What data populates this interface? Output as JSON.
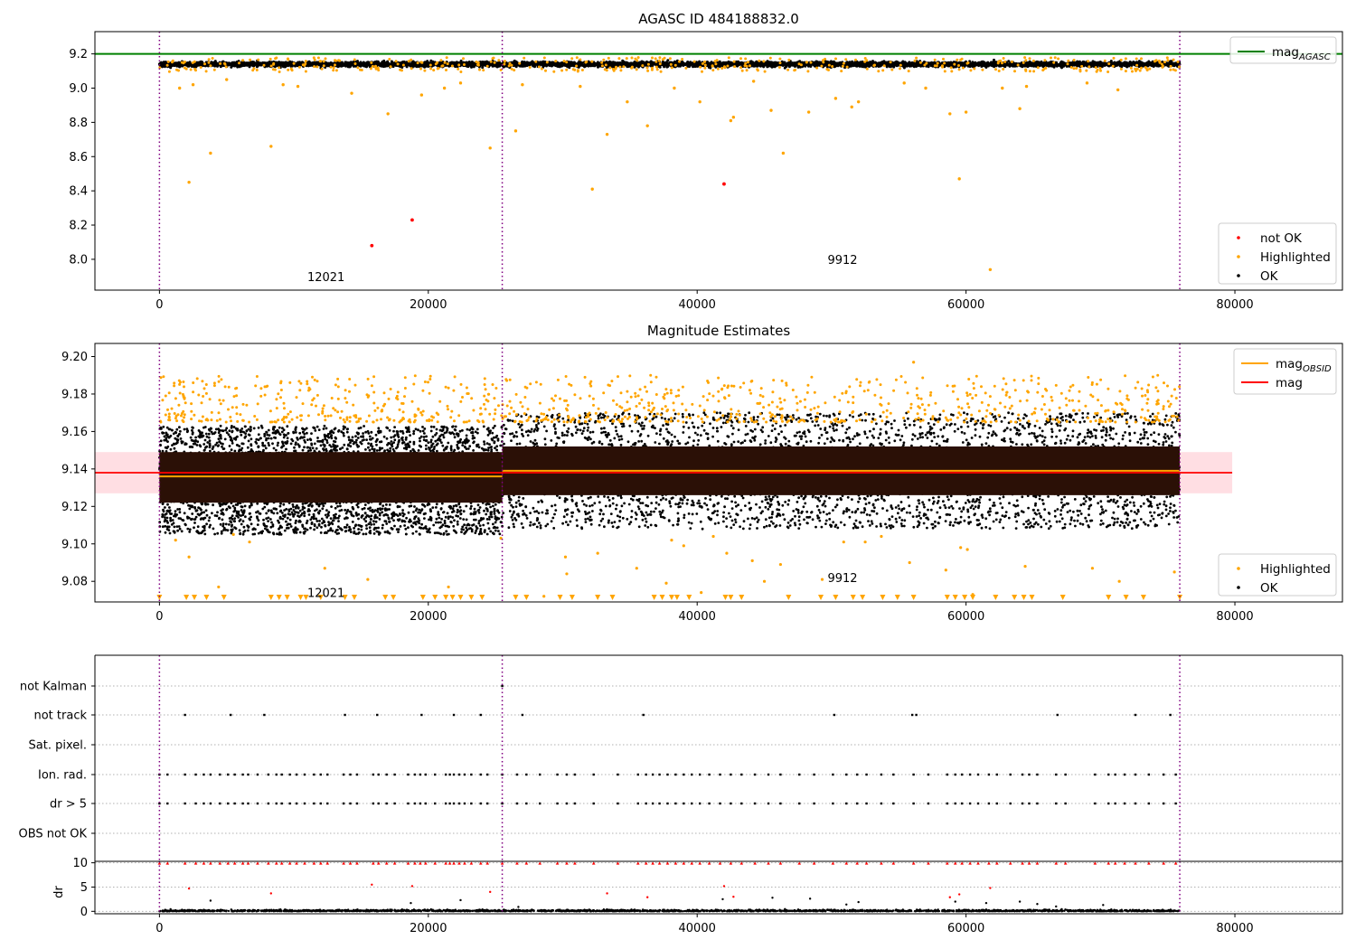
{
  "chart_data": [
    {
      "type": "scatter",
      "title": "AGASC ID 484188832.0",
      "xlim": [
        -4800,
        88000
      ],
      "ylim": [
        7.82,
        9.33
      ],
      "xticks": [
        0,
        20000,
        40000,
        60000,
        80000
      ],
      "yticks": [
        8.0,
        8.2,
        8.4,
        8.6,
        8.8,
        9.0,
        9.2
      ],
      "reference_line": {
        "name": "mag_AGASC",
        "value": 9.2,
        "color": "#008000"
      },
      "obsid_boundaries": [
        0,
        25500,
        75900
      ],
      "obsid_labels": [
        {
          "text": "12021",
          "x": 11000,
          "y": 7.9
        },
        {
          "text": "9912",
          "x": 49700,
          "y": 8.0
        }
      ],
      "legends": [
        {
          "position": "upper-right",
          "entries": [
            {
              "label": "mag",
              "subscript": "AGASC",
              "color": "#008000",
              "kind": "line"
            }
          ]
        },
        {
          "position": "lower-right",
          "entries": [
            {
              "label": "not OK",
              "color": "#ff0000",
              "kind": "marker"
            },
            {
              "label": "Highlighted",
              "color": "#ffa500",
              "kind": "marker"
            },
            {
              "label": "OK",
              "color": "#000000",
              "kind": "marker"
            }
          ]
        }
      ],
      "series": [
        {
          "name": "OK",
          "color": "#000000",
          "y_band": [
            9.115,
            9.165
          ],
          "x_range": [
            0,
            75900
          ],
          "description_density": "dense"
        },
        {
          "name": "Highlighted",
          "color": "#ffa500",
          "points": [
            [
              2200,
              8.45
            ],
            [
              3800,
              8.62
            ],
            [
              8300,
              8.66
            ],
            [
              17000,
              8.85
            ],
            [
              24600,
              8.65
            ],
            [
              26500,
              8.75
            ],
            [
              32200,
              8.41
            ],
            [
              33300,
              8.73
            ],
            [
              36300,
              8.78
            ],
            [
              42500,
              8.81
            ],
            [
              42700,
              8.83
            ],
            [
              46400,
              8.62
            ],
            [
              48300,
              8.86
            ],
            [
              58800,
              8.85
            ],
            [
              59500,
              8.47
            ],
            [
              61800,
              7.94
            ],
            [
              60000,
              8.86
            ],
            [
              64000,
              8.88
            ],
            [
              1500,
              9.0
            ],
            [
              2500,
              9.02
            ],
            [
              5000,
              9.05
            ],
            [
              9200,
              9.02
            ],
            [
              10300,
              9.01
            ],
            [
              14300,
              8.97
            ],
            [
              19500,
              8.96
            ],
            [
              21200,
              9.0
            ],
            [
              22400,
              9.03
            ],
            [
              27000,
              9.02
            ],
            [
              31300,
              9.01
            ],
            [
              34800,
              8.92
            ],
            [
              38300,
              9.0
            ],
            [
              40200,
              8.92
            ],
            [
              44200,
              9.04
            ],
            [
              45500,
              8.87
            ],
            [
              50300,
              8.94
            ],
            [
              51500,
              8.89
            ],
            [
              52000,
              8.92
            ],
            [
              55400,
              9.03
            ],
            [
              57000,
              9.0
            ],
            [
              62700,
              9.0
            ],
            [
              64500,
              9.01
            ],
            [
              69000,
              9.03
            ],
            [
              71300,
              8.99
            ]
          ]
        },
        {
          "name": "not OK",
          "color": "#ff0000",
          "points": [
            [
              15800,
              8.08
            ],
            [
              18800,
              8.23
            ],
            [
              42000,
              8.44
            ]
          ]
        }
      ]
    },
    {
      "type": "scatter",
      "title": "Magnitude Estimates",
      "xlim": [
        -4800,
        88000
      ],
      "ylim": [
        9.069,
        9.207
      ],
      "xticks": [
        0,
        20000,
        40000,
        60000,
        80000
      ],
      "yticks": [
        9.08,
        9.1,
        9.12,
        9.14,
        9.16,
        9.18,
        9.2
      ],
      "mag": {
        "value": 9.138,
        "band": [
          9.127,
          9.149
        ],
        "x_range": [
          -4800,
          79800
        ],
        "color": "#ff0000"
      },
      "mag_obsid": [
        {
          "obsid": "12021",
          "value": 9.136,
          "x_range": [
            0,
            25500
          ]
        },
        {
          "obsid": "9912",
          "value": 9.139,
          "x_range": [
            25500,
            75900
          ]
        }
      ],
      "obsid_boundaries": [
        0,
        25500,
        75900
      ],
      "obsid_labels": [
        {
          "text": "12021",
          "x": 11000,
          "y": 9.074
        },
        {
          "text": "9912",
          "x": 49700,
          "y": 9.082
        }
      ],
      "legends": [
        {
          "position": "upper-right",
          "entries": [
            {
              "label": "mag",
              "subscript": "OBSID",
              "color": "#ffa500",
              "kind": "line"
            },
            {
              "label": "mag",
              "subscript": "",
              "color": "#ff0000",
              "kind": "line"
            }
          ]
        },
        {
          "position": "lower-right",
          "entries": [
            {
              "label": "Highlighted",
              "color": "#ffa500",
              "kind": "marker"
            },
            {
              "label": "OK",
              "color": "#000000",
              "kind": "marker"
            }
          ]
        }
      ],
      "series": [
        {
          "name": "OK",
          "segments": [
            {
              "x_range": [
                0,
                25500
              ],
              "core": [
                9.122,
                9.149
              ],
              "spread": [
                9.105,
                9.163
              ]
            },
            {
              "x_range": [
                25500,
                75900
              ],
              "core": [
                9.126,
                9.152
              ],
              "spread": [
                9.108,
                9.17
              ]
            }
          ],
          "color": "#000000"
        },
        {
          "name": "Highlighted",
          "color": "#ffa500",
          "y_range_upper": [
            9.165,
            9.19
          ],
          "outliers": [
            [
              56100,
              9.197
            ],
            [
              1200,
              9.102
            ],
            [
              2200,
              9.093
            ],
            [
              4400,
              9.077
            ],
            [
              5500,
              9.105
            ],
            [
              6700,
              9.101
            ],
            [
              12300,
              9.087
            ],
            [
              15500,
              9.081
            ],
            [
              21500,
              9.077
            ],
            [
              25400,
              9.103
            ],
            [
              28600,
              9.072
            ],
            [
              30200,
              9.093
            ],
            [
              30300,
              9.084
            ],
            [
              32600,
              9.095
            ],
            [
              35500,
              9.087
            ],
            [
              37700,
              9.079
            ],
            [
              38100,
              9.102
            ],
            [
              39000,
              9.099
            ],
            [
              40300,
              9.074
            ],
            [
              41200,
              9.104
            ],
            [
              42200,
              9.095
            ],
            [
              44100,
              9.091
            ],
            [
              45000,
              9.08
            ],
            [
              46200,
              9.089
            ],
            [
              49300,
              9.081
            ],
            [
              50900,
              9.101
            ],
            [
              52500,
              9.101
            ],
            [
              53700,
              9.104
            ],
            [
              55800,
              9.09
            ],
            [
              58500,
              9.086
            ],
            [
              59600,
              9.098
            ],
            [
              60100,
              9.097
            ],
            [
              60500,
              9.073
            ],
            [
              64400,
              9.088
            ],
            [
              69400,
              9.087
            ],
            [
              71400,
              9.08
            ],
            [
              75500,
              9.085
            ]
          ],
          "below_axis_markers": [
            0,
            2000,
            2600,
            3500,
            4800,
            8300,
            8900,
            9500,
            10500,
            10900,
            12000,
            13800,
            14500,
            16800,
            17400,
            19600,
            20500,
            21300,
            21800,
            22400,
            23200,
            24000,
            26500,
            27300,
            29800,
            30700,
            32600,
            33700,
            36800,
            37400,
            38100,
            38500,
            39400,
            42100,
            42500,
            43300,
            46800,
            49200,
            50300,
            51600,
            52300,
            53800,
            54900,
            56100,
            58600,
            59200,
            59900,
            60500,
            62200,
            63600,
            64300,
            64900,
            67200,
            70600,
            71900,
            73200,
            75900
          ]
        }
      ]
    },
    {
      "type": "scatter",
      "title": "",
      "xlim": [
        -4800,
        88000
      ],
      "xticks": [
        0,
        20000,
        40000,
        60000,
        80000
      ],
      "flag_categories": [
        "not Kalman",
        "not track",
        "Sat. pixel.",
        "Ion. rad.",
        "dr > 5",
        "OBS not OK"
      ],
      "obsid_boundaries": [
        0,
        25500,
        75900
      ],
      "flags": {
        "not Kalman": [
          25500
        ],
        "not track": [
          1900,
          5300,
          7800,
          13800,
          16200,
          19500,
          21900,
          23900,
          27000,
          36000,
          50200,
          56000,
          56300,
          66800,
          72600,
          75200
        ],
        "Sat. pixel.": [],
        "Ion. rad.": [
          0,
          600,
          1900,
          2700,
          3300,
          3800,
          4500,
          5100,
          5600,
          6200,
          6600,
          7300,
          8100,
          8700,
          9100,
          9700,
          10200,
          10800,
          11500,
          12000,
          12500,
          13700,
          14200,
          14700,
          15900,
          16300,
          16900,
          17500,
          18500,
          19000,
          19400,
          19800,
          20500,
          21300,
          21600,
          21900,
          22300,
          22700,
          23200,
          23900,
          24400,
          25500,
          26600,
          27300,
          28300,
          29600,
          30300,
          30900,
          32300,
          34100,
          35600,
          36200,
          36700,
          37200,
          37800,
          38400,
          39000,
          39600,
          40200,
          40900,
          41700,
          42500,
          43300,
          44300,
          45300,
          46200,
          47600,
          48700,
          50100,
          51100,
          51900,
          52600,
          53700,
          54600,
          56100,
          57200,
          58600,
          59200,
          59700,
          60300,
          60900,
          61700,
          62300,
          63300,
          64200,
          64700,
          65300,
          66700,
          67400,
          69600,
          70600,
          71100,
          71800,
          72600,
          73600,
          74700,
          75600
        ],
        "dr > 5": [
          0,
          600,
          1900,
          2700,
          3300,
          3800,
          4500,
          5100,
          5600,
          6200,
          6600,
          7300,
          8100,
          8700,
          9100,
          9700,
          10200,
          10800,
          11500,
          12000,
          12500,
          13700,
          14200,
          14700,
          15900,
          16300,
          16900,
          17500,
          18500,
          19000,
          19400,
          19800,
          20500,
          21300,
          21600,
          21900,
          22300,
          22700,
          23200,
          23900,
          24400,
          25500,
          26600,
          27300,
          28300,
          29600,
          30300,
          30900,
          32300,
          34100,
          35600,
          36200,
          36700,
          37200,
          37800,
          38400,
          39000,
          39600,
          40200,
          40900,
          41700,
          42500,
          43300,
          44300,
          45300,
          46200,
          47600,
          48700,
          50100,
          51100,
          51900,
          52600,
          53700,
          54600,
          56100,
          57200,
          58600,
          59200,
          59700,
          60300,
          60900,
          61700,
          62300,
          63300,
          64200,
          64700,
          65300,
          66700,
          67400,
          69600,
          70600,
          71100,
          71800,
          72600,
          73600,
          74700,
          75600
        ],
        "OBS not OK": []
      }
    },
    {
      "type": "scatter",
      "title": "",
      "ylabel": "dr",
      "xlim": [
        -4800,
        88000
      ],
      "ylim": [
        -0.5,
        10.3
      ],
      "xticks": [
        0,
        20000,
        40000,
        60000,
        80000
      ],
      "yticks": [
        0,
        5,
        10
      ],
      "series": [
        {
          "name": "OK",
          "color": "#000000",
          "y_range": [
            0,
            0.9
          ],
          "x_range": [
            0,
            75900
          ],
          "extra_points": [
            [
              3800,
              2.2
            ],
            [
              18700,
              1.7
            ],
            [
              22400,
              2.3
            ],
            [
              26700,
              0.9
            ],
            [
              41900,
              2.5
            ],
            [
              45600,
              2.8
            ],
            [
              48400,
              2.6
            ],
            [
              51100,
              1.4
            ],
            [
              52000,
              1.9
            ],
            [
              59200,
              2.0
            ],
            [
              61500,
              1.7
            ],
            [
              64000,
              2.0
            ],
            [
              65300,
              1.5
            ],
            [
              66700,
              1.0
            ],
            [
              70200,
              1.3
            ]
          ]
        },
        {
          "name": "not OK",
          "color": "#ff0000",
          "clipped_at": 10,
          "points": [
            [
              2200,
              4.7
            ],
            [
              8300,
              3.7
            ],
            [
              15800,
              5.5
            ],
            [
              18800,
              5.2
            ],
            [
              24600,
              4.0
            ],
            [
              33300,
              3.7
            ],
            [
              36300,
              2.9
            ],
            [
              42000,
              5.2
            ],
            [
              42700,
              3.0
            ],
            [
              58800,
              2.9
            ],
            [
              59500,
              3.5
            ],
            [
              61800,
              4.8
            ]
          ]
        }
      ]
    }
  ]
}
